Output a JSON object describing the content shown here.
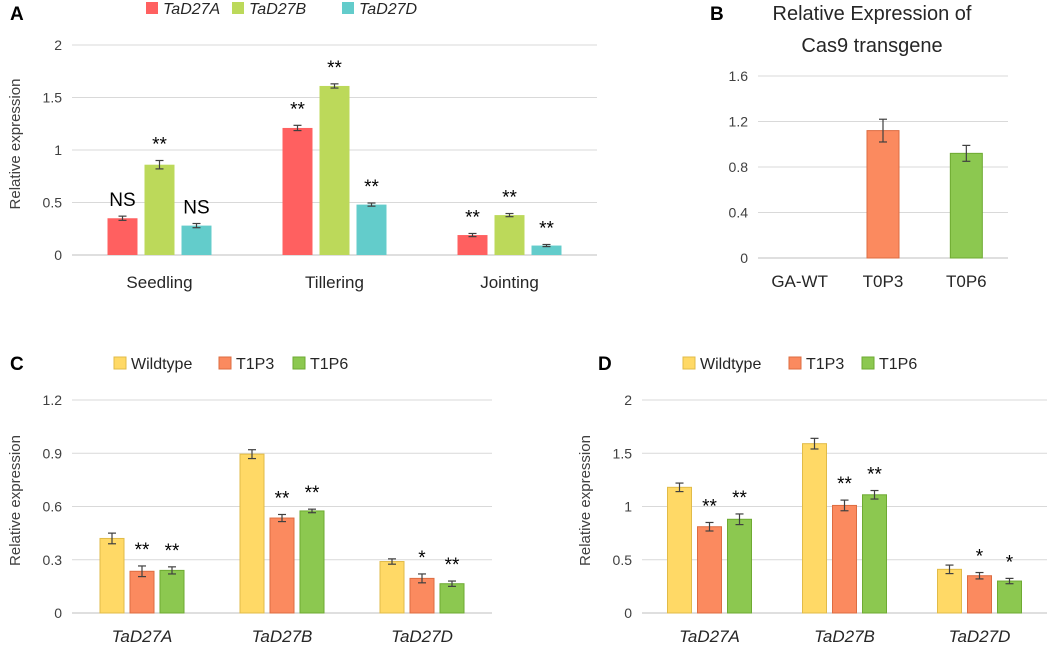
{
  "colors": {
    "red": "#ff6060",
    "lime": "#bcd95a",
    "teal": "#63cccb",
    "yellow": "#ffd966",
    "orange": "#fb8a5f",
    "green": "#8cc850",
    "grid": "#d9d9d9",
    "axis": "#bfbfbf",
    "err": "#404040"
  },
  "chart_data": [
    {
      "panel": "A",
      "type": "bar",
      "title": "",
      "xlabel": "",
      "ylabel": "Relative expression",
      "ylim": [
        0,
        2
      ],
      "yticks": [
        "0",
        "0.5",
        "1",
        "1.5",
        "2"
      ],
      "ytick_values": [
        0,
        0.5,
        1,
        1.5,
        2
      ],
      "categories": [
        "Seedling",
        "Tillering",
        "Jointing"
      ],
      "category_style": "normal",
      "legend_style": "italic",
      "legend_position": "top",
      "series": [
        {
          "name": "TaD27A",
          "color": "red",
          "values": [
            0.35,
            1.21,
            0.19
          ],
          "errors": [
            0.02,
            0.025,
            0.015
          ],
          "annotations": [
            "NS",
            "**",
            "**"
          ]
        },
        {
          "name": "TaD27B",
          "color": "lime",
          "values": [
            0.86,
            1.61,
            0.38
          ],
          "errors": [
            0.04,
            0.02,
            0.015
          ],
          "annotations": [
            "**",
            "**",
            "**"
          ]
        },
        {
          "name": "TaD27D",
          "color": "teal",
          "values": [
            0.28,
            0.48,
            0.09
          ],
          "errors": [
            0.02,
            0.015,
            0.01
          ],
          "annotations": [
            "NS",
            "**",
            "**"
          ]
        }
      ]
    },
    {
      "panel": "B",
      "type": "bar",
      "title": [
        "Relative Expression of",
        "Cas9 transgene"
      ],
      "xlabel": "",
      "ylabel": "",
      "ylim": [
        0,
        1.6
      ],
      "yticks": [
        "0",
        "0.4",
        "0.8",
        "1.2",
        "1.6"
      ],
      "ytick_values": [
        0,
        0.4,
        0.8,
        1.2,
        1.6
      ],
      "categories": [
        "GA-WT",
        "T0P3",
        "T0P6"
      ],
      "category_style": "normal",
      "values": [
        0,
        1.12,
        0.92
      ],
      "errors": [
        0,
        0.1,
        0.07
      ],
      "bar_colors": [
        "orange",
        "orange",
        "green"
      ]
    },
    {
      "panel": "C",
      "type": "bar",
      "title": "",
      "xlabel": "",
      "ylabel": "Relative expression",
      "ylim": [
        0,
        1.2
      ],
      "yticks": [
        "0",
        "0.3",
        "0.6",
        "0.9",
        "1.2"
      ],
      "ytick_values": [
        0,
        0.3,
        0.6,
        0.9,
        1.2
      ],
      "categories": [
        "TaD27A",
        "TaD27B",
        "TaD27D"
      ],
      "category_style": "italic",
      "legend_style": "normal",
      "legend_position": "top",
      "series": [
        {
          "name": "Wildtype",
          "color": "yellow",
          "values": [
            0.42,
            0.895,
            0.29
          ],
          "errors": [
            0.03,
            0.025,
            0.015
          ],
          "annotations": [
            "",
            "",
            ""
          ]
        },
        {
          "name": "T1P3",
          "color": "orange",
          "values": [
            0.235,
            0.535,
            0.195
          ],
          "errors": [
            0.03,
            0.02,
            0.025
          ],
          "annotations": [
            "**",
            "**",
            "*"
          ]
        },
        {
          "name": "T1P6",
          "color": "green",
          "values": [
            0.24,
            0.575,
            0.165
          ],
          "errors": [
            0.02,
            0.01,
            0.015
          ],
          "annotations": [
            "**",
            "**",
            "**"
          ]
        }
      ]
    },
    {
      "panel": "D",
      "type": "bar",
      "title": "",
      "xlabel": "",
      "ylabel": "Relative expression",
      "ylim": [
        0,
        2
      ],
      "yticks": [
        "0",
        "0.5",
        "1",
        "1.5",
        "2"
      ],
      "ytick_values": [
        0,
        0.5,
        1,
        1.5,
        2
      ],
      "categories": [
        "TaD27A",
        "TaD27B",
        "TaD27D"
      ],
      "category_style": "italic",
      "legend_style": "normal",
      "legend_position": "top",
      "series": [
        {
          "name": "Wildtype",
          "color": "yellow",
          "values": [
            1.18,
            1.59,
            0.41
          ],
          "errors": [
            0.04,
            0.05,
            0.04
          ],
          "annotations": [
            "",
            "",
            ""
          ]
        },
        {
          "name": "T1P3",
          "color": "orange",
          "values": [
            0.81,
            1.01,
            0.35
          ],
          "errors": [
            0.04,
            0.05,
            0.03
          ],
          "annotations": [
            "**",
            "**",
            "*"
          ]
        },
        {
          "name": "T1P6",
          "color": "green",
          "values": [
            0.88,
            1.11,
            0.3
          ],
          "errors": [
            0.05,
            0.04,
            0.025
          ],
          "annotations": [
            "**",
            "**",
            "*"
          ]
        }
      ]
    }
  ]
}
